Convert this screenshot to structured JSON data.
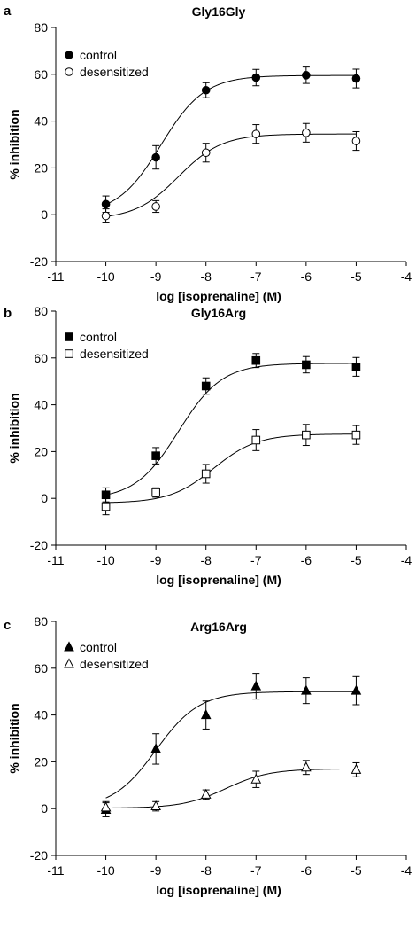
{
  "chart_data": [
    {
      "type": "scatter",
      "panel_label": "a",
      "title": "Gly16Gly",
      "xlabel": "log [isoprenaline] (M)",
      "ylabel": "% inhibition",
      "xlim": [
        -11,
        -4
      ],
      "ylim": [
        -20,
        80
      ],
      "xticks": [
        -11,
        -10,
        -9,
        -8,
        -7,
        -6,
        -5,
        -4
      ],
      "yticks": [
        -20,
        0,
        20,
        40,
        60,
        80
      ],
      "xtick_labels": [
        "-11",
        "-10",
        "-9",
        "-8",
        "-7",
        "-6",
        "-5",
        "-4"
      ],
      "ytick_labels": [
        "-20",
        "0",
        "20",
        "40",
        "60",
        "80"
      ],
      "legend_position": "top-left",
      "series": [
        {
          "name": "control",
          "marker": "circle",
          "filled": true,
          "x": [
            -10,
            -9,
            -8,
            -7,
            -6,
            -5
          ],
          "y": [
            4.5,
            24.5,
            53.2,
            58.6,
            59.6,
            58.2
          ],
          "err": [
            3.5,
            5.0,
            3.2,
            3.5,
            3.5,
            4.0
          ],
          "fit": {
            "bottom": 0,
            "top": 59.5,
            "logec50": -8.9,
            "hill": 1.0
          }
        },
        {
          "name": "desensitized",
          "marker": "circle",
          "filled": false,
          "x": [
            -10,
            -9,
            -8,
            -7,
            -6,
            -5
          ],
          "y": [
            -0.5,
            3.5,
            26.5,
            34.5,
            35.0,
            31.5
          ],
          "err": [
            3.0,
            2.5,
            4.0,
            4.0,
            4.0,
            4.0
          ],
          "fit": {
            "bottom": -2,
            "top": 34.5,
            "logec50": -8.55,
            "hill": 1.0
          }
        }
      ]
    },
    {
      "type": "scatter",
      "panel_label": "b",
      "title": "Gly16Arg",
      "xlabel": "log [isoprenaline] (M)",
      "ylabel": "% inhibition",
      "xlim": [
        -11,
        -4
      ],
      "ylim": [
        -20,
        80
      ],
      "xticks": [
        -11,
        -10,
        -9,
        -8,
        -7,
        -6,
        -5,
        -4
      ],
      "yticks": [
        -20,
        0,
        20,
        40,
        60,
        80
      ],
      "xtick_labels": [
        "-11",
        "-10",
        "-9",
        "-8",
        "-7",
        "-6",
        "-5",
        "-4"
      ],
      "ytick_labels": [
        "-20",
        "0",
        "20",
        "40",
        "60",
        "80"
      ],
      "legend_position": "top-left",
      "series": [
        {
          "name": "control",
          "marker": "square",
          "filled": true,
          "x": [
            -10,
            -9,
            -8,
            -7,
            -6,
            -5
          ],
          "y": [
            1.5,
            18.2,
            48.0,
            58.9,
            57.1,
            56.2
          ],
          "err": [
            3.0,
            3.5,
            3.5,
            3.0,
            3.5,
            4.0
          ],
          "fit": {
            "bottom": -0.5,
            "top": 57.7,
            "logec50": -8.55,
            "hill": 1.0
          }
        },
        {
          "name": "desensitized",
          "marker": "square",
          "filled": false,
          "x": [
            -10,
            -9,
            -8,
            -7,
            -6,
            -5
          ],
          "y": [
            -3.5,
            2.5,
            10.5,
            24.9,
            27.1,
            27.1
          ],
          "err": [
            3.5,
            2.0,
            4.0,
            4.5,
            4.5,
            4.0
          ],
          "fit": {
            "bottom": -2,
            "top": 27.5,
            "logec50": -7.85,
            "hill": 1.0
          }
        }
      ]
    },
    {
      "type": "scatter",
      "panel_label": "c",
      "title": "Arg16Arg",
      "xlabel": "log [isoprenaline] (M)",
      "ylabel": "% inhibition",
      "xlim": [
        -11,
        -4
      ],
      "ylim": [
        -20,
        80
      ],
      "xticks": [
        -11,
        -10,
        -9,
        -8,
        -7,
        -6,
        -5,
        -4
      ],
      "yticks": [
        -20,
        0,
        20,
        40,
        60,
        80
      ],
      "xtick_labels": [
        "-11",
        "-10",
        "-9",
        "-8",
        "-7",
        "-6",
        "-5",
        "-4"
      ],
      "ytick_labels": [
        "-20",
        "0",
        "20",
        "40",
        "60",
        "80"
      ],
      "legend_position": "top-left",
      "series": [
        {
          "name": "control",
          "marker": "triangle",
          "filled": true,
          "x": [
            -10,
            -9,
            -8,
            -7,
            -6,
            -5
          ],
          "y": [
            -0.5,
            25.5,
            40.0,
            52.3,
            50.4,
            50.4
          ],
          "err": [
            3.0,
            6.5,
            6.0,
            5.5,
            5.5,
            6.0
          ],
          "fit": {
            "bottom": 0,
            "top": 50,
            "logec50": -9.0,
            "hill": 1.0
          }
        },
        {
          "name": "desensitized",
          "marker": "triangle",
          "filled": false,
          "x": [
            -10,
            -9,
            -8,
            -7,
            -6,
            -5
          ],
          "y": [
            0.5,
            1.0,
            6.0,
            12.5,
            17.6,
            16.6
          ],
          "err": [
            2.5,
            2.0,
            2.0,
            3.5,
            3.0,
            3.0
          ],
          "fit": {
            "bottom": 0.2,
            "top": 17,
            "logec50": -7.6,
            "hill": 1.0
          }
        }
      ]
    }
  ]
}
